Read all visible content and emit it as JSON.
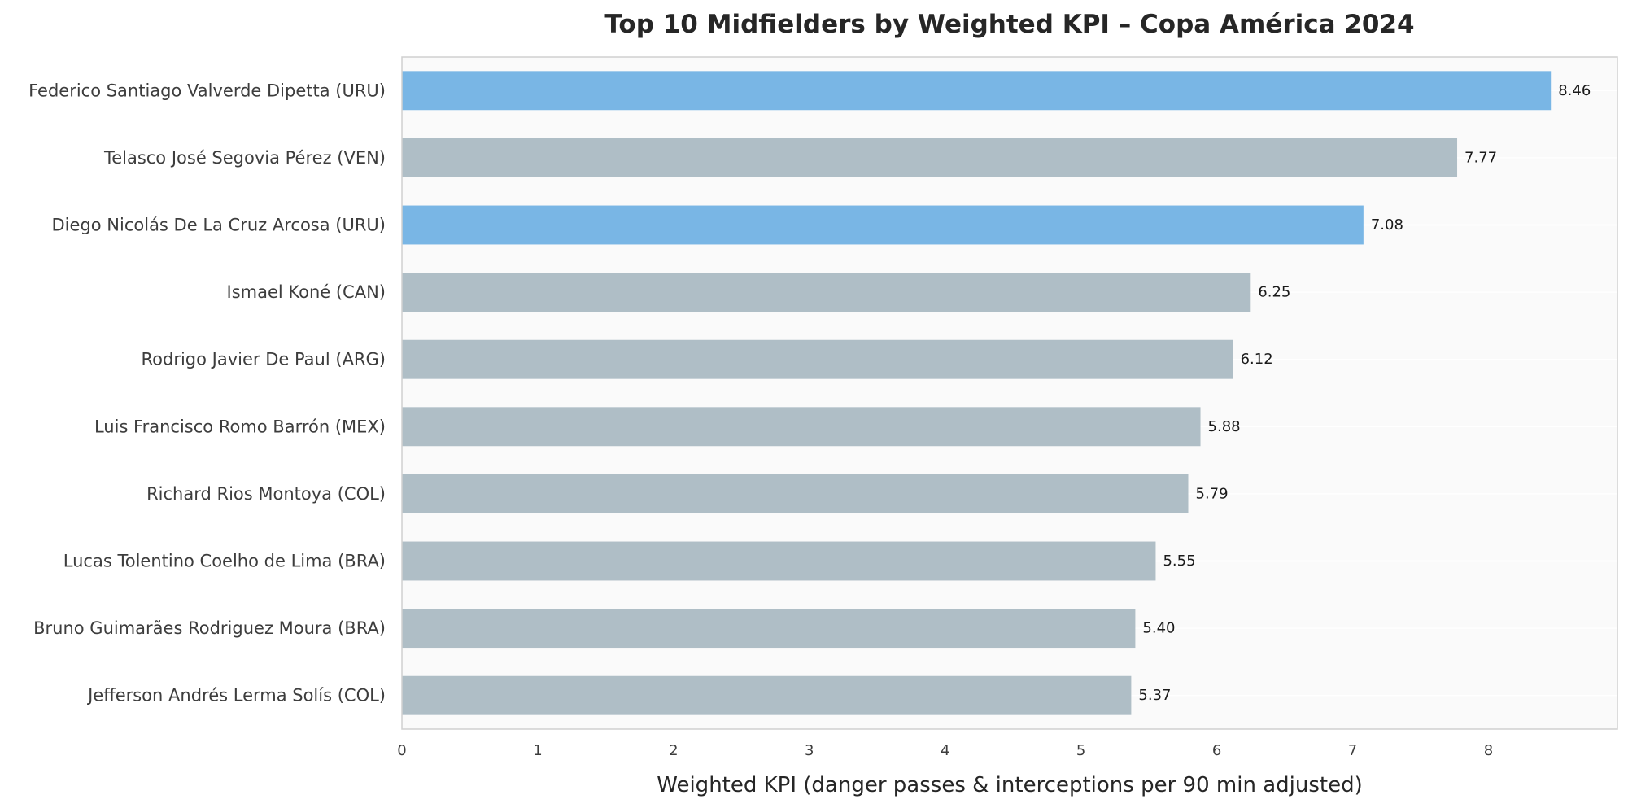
{
  "chart_data": {
    "type": "bar",
    "orientation": "horizontal",
    "title": "Top 10 Midfielders by Weighted KPI – Copa América 2024",
    "xlabel": "Weighted KPI (danger passes & interceptions per 90 min adjusted)",
    "ylabel": "",
    "xlim": [
      0,
      8.95
    ],
    "xticks": [
      0,
      1,
      2,
      3,
      4,
      5,
      6,
      7,
      8
    ],
    "grid": true,
    "legend": false,
    "categories": [
      "Federico Santiago Valverde Dipetta (URU)",
      "Telasco José Segovia Pérez (VEN)",
      "Diego Nicolás De La Cruz Arcosa (URU)",
      "Ismael Koné (CAN)",
      "Rodrigo Javier De Paul (ARG)",
      "Luis Francisco Romo Barrón (MEX)",
      "Richard Rios Montoya (COL)",
      "Lucas Tolentino Coelho de Lima (BRA)",
      "Bruno Guimarães Rodriguez Moura (BRA)",
      "Jefferson Andrés Lerma Solís (COL)"
    ],
    "values": [
      8.46,
      7.77,
      7.08,
      6.25,
      6.12,
      5.88,
      5.79,
      5.55,
      5.4,
      5.37
    ],
    "value_labels": [
      "8.46",
      "7.77",
      "7.08",
      "6.25",
      "6.12",
      "5.88",
      "5.79",
      "5.55",
      "5.40",
      "5.37"
    ],
    "highlighted": [
      true,
      false,
      true,
      false,
      false,
      false,
      false,
      false,
      false,
      false
    ],
    "colors": {
      "highlight": "#79b6e5",
      "default": "#afbec6",
      "plot_background": "#fafafa",
      "axes_edge": "#d0d0d0",
      "grid": "#ffffff"
    }
  }
}
